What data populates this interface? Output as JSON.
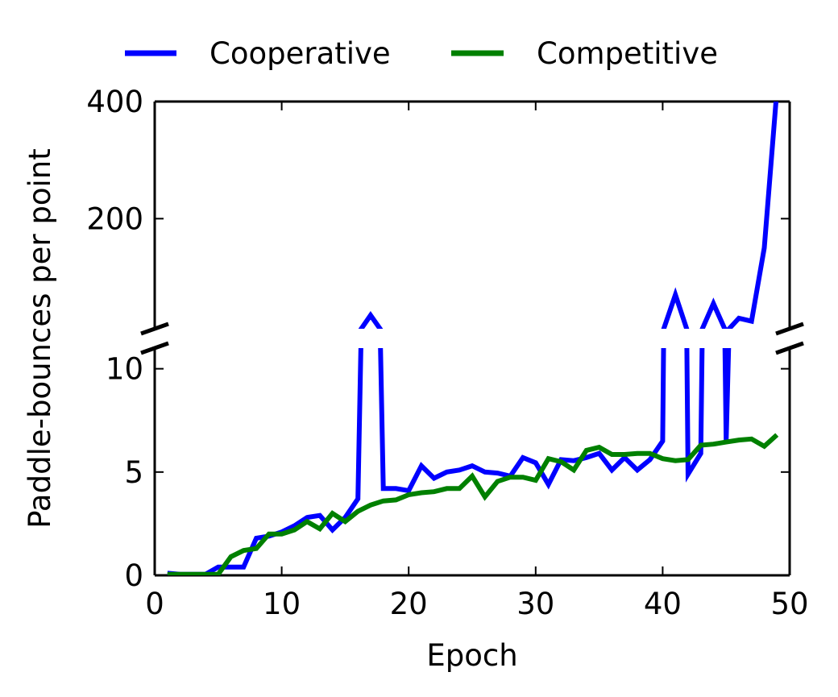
{
  "chart_data": {
    "type": "line",
    "xlabel": "Epoch",
    "ylabel": "Paddle-bounces per point",
    "broken_y_axis": true,
    "xlim": [
      0,
      50
    ],
    "x_ticks": [
      0,
      10,
      20,
      30,
      40,
      50
    ],
    "upper_panel": {
      "ylim": [
        12,
        400
      ],
      "y_ticks": [
        200,
        400
      ]
    },
    "lower_panel": {
      "ylim": [
        0,
        11
      ],
      "y_ticks": [
        0,
        5,
        10
      ]
    },
    "legend": {
      "placement": "top-center",
      "entries": [
        "Cooperative",
        "Competitive"
      ]
    },
    "grid": false,
    "x": [
      1,
      2,
      3,
      4,
      5,
      6,
      7,
      8,
      9,
      10,
      11,
      12,
      13,
      14,
      15,
      16,
      17,
      18,
      19,
      20,
      21,
      22,
      23,
      24,
      25,
      26,
      27,
      28,
      29,
      30,
      31,
      32,
      33,
      34,
      35,
      36,
      37,
      38,
      39,
      40,
      41,
      42,
      43,
      44,
      45,
      46,
      47,
      48,
      49
    ],
    "series": [
      {
        "name": "Cooperative",
        "color": "#0000ff",
        "values": [
          0.1,
          0.05,
          0.05,
          0.05,
          0.4,
          0.4,
          0.4,
          1.8,
          1.9,
          2.1,
          2.4,
          2.8,
          2.9,
          2.2,
          2.8,
          3.7,
          35,
          4.2,
          4.2,
          4.1,
          5.3,
          4.7,
          5.0,
          5.1,
          5.3,
          5.0,
          4.95,
          4.8,
          5.7,
          5.45,
          4.4,
          5.6,
          5.55,
          5.7,
          5.9,
          5.1,
          5.7,
          5.1,
          5.6,
          6.5,
          70,
          4.9,
          5.9,
          55,
          6.5,
          30,
          25,
          150,
          420
        ]
      },
      {
        "name": "Competitive",
        "color": "#008000",
        "values": [
          0.05,
          0.05,
          0.05,
          0.05,
          0.05,
          0.9,
          1.2,
          1.3,
          2.0,
          2.0,
          2.2,
          2.6,
          2.25,
          3.0,
          2.6,
          3.1,
          3.4,
          3.6,
          3.65,
          3.9,
          4.0,
          4.05,
          4.2,
          4.2,
          4.8,
          3.8,
          4.55,
          4.75,
          4.75,
          4.6,
          5.65,
          5.5,
          5.1,
          6.05,
          6.2,
          5.85,
          5.85,
          5.9,
          5.9,
          5.65,
          5.55,
          5.6,
          6.3,
          6.35,
          6.45,
          6.55,
          6.6,
          6.25,
          6.8
        ]
      }
    ]
  }
}
